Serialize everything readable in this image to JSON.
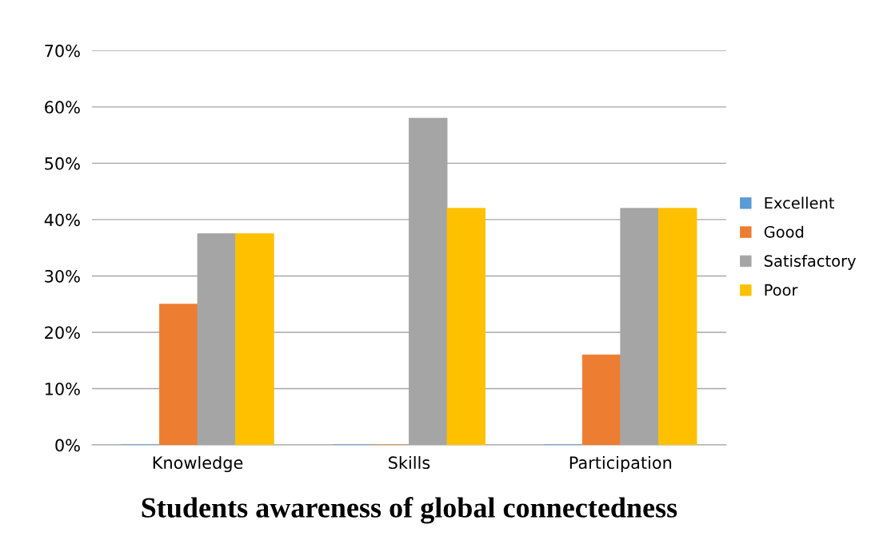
{
  "chart_data": {
    "type": "bar",
    "title": "Students awareness of global connectedness",
    "categories": [
      "Knowledge",
      "Skills",
      "Participation"
    ],
    "series": [
      {
        "name": "Excellent",
        "color": "#5b9bd5",
        "values": [
          0,
          0,
          0
        ]
      },
      {
        "name": "Good",
        "color": "#ed7d31",
        "values": [
          25,
          0,
          16
        ]
      },
      {
        "name": "Satisfactory",
        "color": "#a5a5a5",
        "values": [
          37.5,
          58,
          42
        ]
      },
      {
        "name": "Poor",
        "color": "#ffc000",
        "values": [
          37.5,
          42,
          42
        ]
      }
    ],
    "ylim": [
      0,
      70
    ],
    "yticks": [
      {
        "value": 0,
        "label": "0%"
      },
      {
        "value": 10,
        "label": "10%"
      },
      {
        "value": 20,
        "label": "20%"
      },
      {
        "value": 30,
        "label": "30%"
      },
      {
        "value": 40,
        "label": "40%"
      },
      {
        "value": 50,
        "label": "50%"
      },
      {
        "value": 60,
        "label": "60%"
      },
      {
        "value": 70,
        "label": "70%"
      }
    ],
    "grid": "y",
    "legend": "right"
  }
}
